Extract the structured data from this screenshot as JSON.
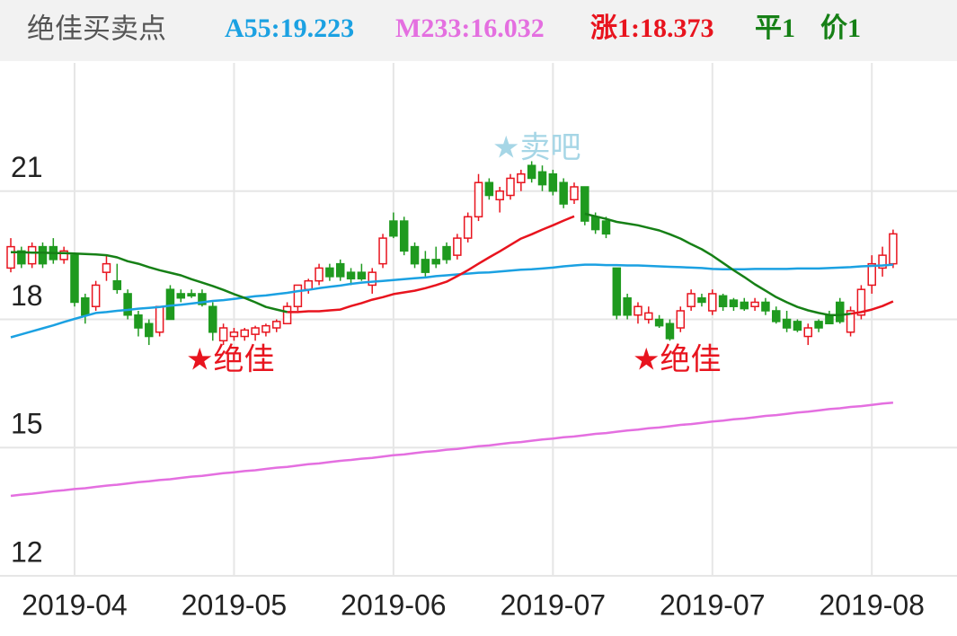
{
  "chart_data": {
    "type": "candlestick",
    "title": "绝佳买卖点",
    "categories": [
      null,
      null,
      null,
      null,
      null,
      null,
      "2019-04",
      null,
      null,
      null,
      null,
      null,
      null,
      null,
      null,
      null,
      null,
      null,
      null,
      null,
      null,
      "2019-05",
      null,
      null,
      null,
      null,
      null,
      null,
      null,
      null,
      null,
      null,
      null,
      null,
      null,
      null,
      "2019-06",
      null,
      null,
      null,
      null,
      null,
      null,
      null,
      null,
      null,
      null,
      null,
      null,
      null,
      null,
      "2019-07",
      null,
      null,
      null,
      null,
      null,
      null,
      null,
      null,
      null,
      null,
      null,
      null,
      null,
      null,
      "2019-07",
      null,
      null,
      null,
      null,
      null,
      null,
      null,
      null,
      null,
      null,
      null,
      null,
      null,
      null,
      "2019-08",
      null,
      null
    ],
    "open": [
      19.2,
      19.6,
      19.3,
      19.7,
      19.7,
      19.4,
      19.5,
      18.5,
      18.3,
      19.1,
      18.9,
      18.6,
      18.1,
      17.9,
      17.7,
      18.7,
      18.6,
      18.6,
      18.6,
      18.3,
      17.5,
      17.6,
      17.6,
      17.65,
      17.7,
      17.8,
      17.9,
      18.3,
      18.7,
      18.9,
      19.2,
      19.3,
      19.1,
      19.1,
      18.8,
      19.3,
      20.3,
      20.3,
      19.7,
      19.4,
      19.4,
      19.7,
      19.5,
      19.9,
      20.4,
      21.2,
      20.8,
      20.9,
      21.2,
      21.6,
      21.45,
      21.4,
      21.2,
      20.8,
      21.1,
      20.4,
      20.3,
      19.2,
      18.5,
      18.1,
      18.0,
      18.0,
      17.9,
      17.8,
      18.3,
      18.5,
      18.2,
      18.55,
      18.45,
      18.4,
      18.3,
      18.4,
      18.2,
      18.0,
      17.95,
      17.6,
      17.95,
      18.1,
      18.4,
      17.7,
      18.1,
      18.8,
      19.2,
      19.3
    ],
    "high": [
      19.9,
      19.7,
      19.8,
      19.8,
      19.9,
      19.7,
      19.5,
      18.6,
      18.9,
      19.5,
      19.3,
      18.7,
      18.2,
      18.0,
      18.3,
      18.8,
      18.7,
      18.7,
      18.7,
      18.4,
      17.9,
      17.8,
      17.8,
      17.85,
      17.9,
      18.0,
      18.4,
      18.8,
      18.95,
      19.3,
      19.3,
      19.4,
      19.2,
      19.3,
      19.2,
      20.0,
      20.5,
      20.4,
      19.8,
      19.6,
      19.7,
      19.8,
      20.0,
      20.5,
      21.4,
      21.3,
      21.1,
      21.4,
      21.5,
      21.7,
      21.6,
      21.5,
      21.3,
      21.2,
      21.1,
      20.5,
      20.4,
      19.2,
      18.6,
      18.4,
      18.3,
      18.1,
      18.0,
      18.3,
      18.7,
      18.6,
      18.7,
      18.6,
      18.5,
      18.5,
      18.5,
      18.5,
      18.3,
      18.2,
      18.0,
      17.9,
      18.0,
      18.2,
      18.5,
      18.3,
      18.8,
      19.5,
      19.7,
      20.1
    ],
    "low": [
      19.1,
      19.2,
      19.2,
      19.2,
      19.3,
      19.3,
      18.3,
      17.9,
      18.2,
      18.9,
      18.6,
      18.0,
      17.6,
      17.4,
      17.6,
      18.0,
      18.4,
      18.5,
      18.3,
      17.5,
      17.4,
      17.5,
      17.5,
      17.5,
      17.6,
      17.7,
      17.9,
      18.2,
      18.6,
      18.8,
      18.9,
      18.9,
      18.8,
      18.9,
      18.6,
      19.2,
      19.9,
      19.5,
      19.2,
      19.0,
      19.2,
      19.3,
      19.4,
      19.8,
      20.3,
      20.8,
      20.5,
      20.8,
      21.0,
      21.2,
      21.0,
      20.9,
      20.6,
      20.7,
      20.2,
      20.0,
      19.9,
      18.0,
      18.0,
      17.9,
      17.9,
      17.8,
      17.5,
      17.7,
      18.2,
      18.3,
      18.1,
      18.2,
      18.2,
      18.2,
      18.2,
      18.1,
      17.9,
      17.7,
      17.7,
      17.4,
      17.7,
      17.9,
      17.9,
      17.6,
      18.0,
      18.6,
      19.0,
      19.2
    ],
    "close": [
      19.7,
      19.3,
      19.7,
      19.3,
      19.4,
      19.6,
      18.4,
      18.1,
      18.8,
      19.3,
      18.7,
      18.1,
      17.8,
      17.6,
      18.3,
      18.0,
      18.5,
      18.55,
      18.35,
      17.7,
      17.8,
      17.7,
      17.75,
      17.8,
      17.85,
      17.95,
      18.3,
      18.8,
      18.9,
      19.2,
      19.0,
      19.0,
      18.95,
      18.95,
      19.1,
      19.9,
      19.95,
      19.6,
      19.3,
      19.1,
      19.3,
      19.4,
      19.9,
      20.4,
      21.2,
      20.9,
      21.0,
      21.3,
      21.4,
      21.3,
      21.15,
      21.0,
      20.7,
      21.1,
      20.3,
      20.1,
      20.0,
      18.1,
      18.1,
      18.3,
      18.15,
      17.85,
      17.55,
      18.2,
      18.6,
      18.4,
      18.6,
      18.3,
      18.3,
      18.25,
      18.4,
      18.2,
      17.95,
      17.8,
      17.75,
      17.8,
      17.8,
      17.9,
      17.95,
      18.2,
      18.7,
      19.3,
      19.5,
      20.0
    ],
    "up_color": "#e8141e",
    "down_color": "#1f9a1f",
    "candle_name": "价1",
    "candle_color": "#168016",
    "series": [
      {
        "name": "A55:19.223",
        "color": "#1ba1e2",
        "values": [
          17.58,
          17.65,
          17.72,
          17.79,
          17.86,
          17.94,
          18.01,
          18.08,
          18.15,
          18.17,
          18.2,
          18.22,
          18.25,
          18.27,
          18.29,
          18.32,
          18.34,
          18.37,
          18.4,
          18.43,
          18.45,
          18.48,
          18.51,
          18.54,
          18.56,
          18.59,
          18.62,
          18.66,
          18.69,
          18.73,
          18.76,
          18.79,
          18.83,
          18.86,
          18.88,
          18.9,
          18.92,
          18.94,
          18.96,
          18.98,
          19.01,
          19.03,
          19.05,
          19.07,
          19.09,
          19.1,
          19.12,
          19.14,
          19.16,
          19.17,
          19.19,
          19.21,
          19.24,
          19.26,
          19.28,
          19.28,
          19.27,
          19.27,
          19.26,
          19.26,
          19.25,
          19.24,
          19.23,
          19.22,
          19.21,
          19.2,
          19.18,
          19.17,
          19.17,
          19.17,
          19.18,
          19.18,
          19.18,
          19.18,
          19.19,
          19.19,
          19.19,
          19.2,
          19.21,
          19.22,
          19.24,
          19.25,
          19.26,
          19.28
        ]
      },
      {
        "name": "M233:16.032",
        "color": "#e46fe0",
        "values": [
          13.87,
          13.9,
          13.92,
          13.95,
          13.98,
          14.0,
          14.03,
          14.05,
          14.08,
          14.11,
          14.13,
          14.16,
          14.19,
          14.21,
          14.24,
          14.26,
          14.29,
          14.32,
          14.34,
          14.37,
          14.4,
          14.42,
          14.45,
          14.47,
          14.5,
          14.53,
          14.55,
          14.58,
          14.61,
          14.63,
          14.66,
          14.69,
          14.71,
          14.74,
          14.76,
          14.79,
          14.82,
          14.84,
          14.87,
          14.9,
          14.92,
          14.95,
          14.97,
          15.0,
          15.03,
          15.05,
          15.08,
          15.11,
          15.13,
          15.16,
          15.19,
          15.21,
          15.24,
          15.26,
          15.29,
          15.32,
          15.34,
          15.37,
          15.4,
          15.42,
          15.45,
          15.47,
          15.5,
          15.53,
          15.55,
          15.58,
          15.61,
          15.63,
          15.66,
          15.68,
          15.71,
          15.74,
          15.76,
          15.79,
          15.82,
          15.84,
          15.87,
          15.9,
          15.92,
          15.95,
          15.97,
          16.0,
          16.03,
          16.05
        ]
      },
      {
        "name": "涨1:18.373",
        "color": "#e8141e",
        "values": [
          null,
          null,
          null,
          null,
          null,
          null,
          null,
          null,
          null,
          null,
          null,
          null,
          null,
          null,
          null,
          null,
          null,
          null,
          null,
          null,
          null,
          null,
          null,
          null,
          null,
          null,
          18.17,
          18.17,
          18.19,
          18.19,
          18.21,
          18.23,
          18.31,
          18.38,
          18.46,
          18.52,
          18.59,
          18.63,
          18.67,
          18.73,
          18.8,
          18.88,
          19.01,
          19.15,
          19.3,
          19.45,
          19.59,
          19.74,
          19.89,
          19.99,
          20.1,
          20.2,
          20.31,
          20.41,
          null,
          null,
          null,
          null,
          null,
          null,
          null,
          null,
          null,
          null,
          null,
          null,
          null,
          null,
          null,
          null,
          null,
          null,
          null,
          null,
          null,
          null,
          null,
          null,
          null,
          18.13,
          18.17,
          18.23,
          18.31,
          18.42
        ]
      },
      {
        "name": "平1",
        "color": "#168016",
        "values": [
          19.57,
          19.57,
          19.56,
          19.56,
          19.55,
          19.55,
          19.54,
          19.53,
          19.52,
          19.5,
          19.45,
          19.36,
          19.3,
          19.22,
          19.15,
          19.09,
          19.03,
          18.94,
          18.86,
          18.78,
          18.69,
          18.59,
          18.5,
          18.4,
          18.29,
          18.23,
          18.17,
          null,
          null,
          null,
          null,
          null,
          null,
          null,
          null,
          null,
          null,
          null,
          null,
          null,
          null,
          null,
          null,
          null,
          null,
          null,
          null,
          null,
          null,
          null,
          null,
          null,
          null,
          null,
          20.47,
          20.41,
          20.35,
          20.28,
          20.24,
          20.2,
          20.14,
          20.08,
          19.99,
          19.89,
          19.76,
          19.64,
          19.49,
          19.32,
          19.15,
          18.99,
          18.82,
          18.67,
          18.52,
          18.4,
          18.29,
          18.21,
          18.15,
          18.1,
          18.1,
          18.13,
          null,
          null,
          null,
          null
        ]
      }
    ],
    "ylim": [
      12,
      24
    ],
    "yticks": [
      12,
      15,
      18,
      21
    ],
    "grid": true,
    "annotations": [
      {
        "text": "★绝佳",
        "color": "#e8141e"
      },
      {
        "text": "★卖吧",
        "color": "#a6d6e6"
      },
      {
        "text": "★绝佳",
        "color": "#e8141e"
      }
    ]
  }
}
